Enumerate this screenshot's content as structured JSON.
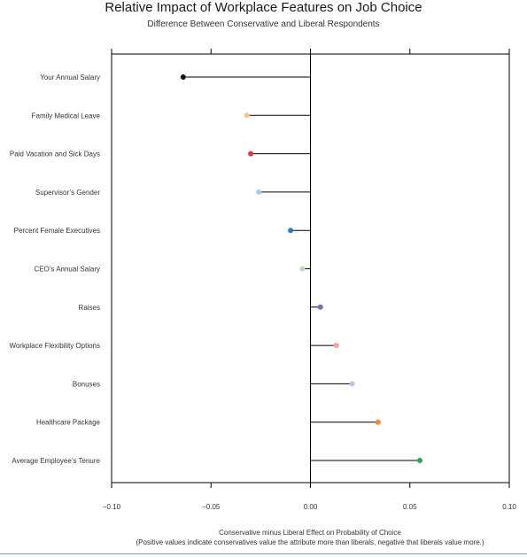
{
  "chart_data": {
    "type": "dot",
    "title": "Relative Impact of Workplace Features on Job Choice",
    "subtitle": "Difference Between Conservative and Liberal Respondents",
    "xlabel": "Conservative minus Liberal Effect on Probability of Choice",
    "xlabel_note": "(Positive values indicate conservatives value the attribute more than liberals, negative that liberals value more.)",
    "xlim": [
      -0.1,
      0.1
    ],
    "xticks": [
      -0.1,
      -0.05,
      0.0,
      0.05,
      0.1
    ],
    "xtick_labels": [
      "−0.10",
      "−0.05",
      "0.00",
      "0.05",
      "0.10"
    ],
    "grid": false,
    "points": [
      {
        "label": "Your Annual Salary",
        "value": -0.064,
        "color": "#111111"
      },
      {
        "label": "Family Medical Leave",
        "value": -0.032,
        "color": "#f9c48a"
      },
      {
        "label": "Paid Vacation and Sick Days",
        "value": -0.03,
        "color": "#d93a3a"
      },
      {
        "label": "Supervisor’s Gender",
        "value": -0.026,
        "color": "#9fcae6"
      },
      {
        "label": "Percent Female Executives",
        "value": -0.01,
        "color": "#2a7bc4"
      },
      {
        "label": "CEO’s Annual Salary",
        "value": -0.004,
        "color": "#b7dfab"
      },
      {
        "label": "Raises",
        "value": 0.005,
        "color": "#7a6aae"
      },
      {
        "label": "Workplace Flexibility Options",
        "value": 0.013,
        "color": "#f4a3a0"
      },
      {
        "label": "Bonuses",
        "value": 0.021,
        "color": "#c2c2e0"
      },
      {
        "label": "Healthcare Package",
        "value": 0.034,
        "color": "#f58a2a"
      },
      {
        "label": "Average Employee’s Tenure",
        "value": 0.055,
        "color": "#2aa84a"
      }
    ]
  }
}
